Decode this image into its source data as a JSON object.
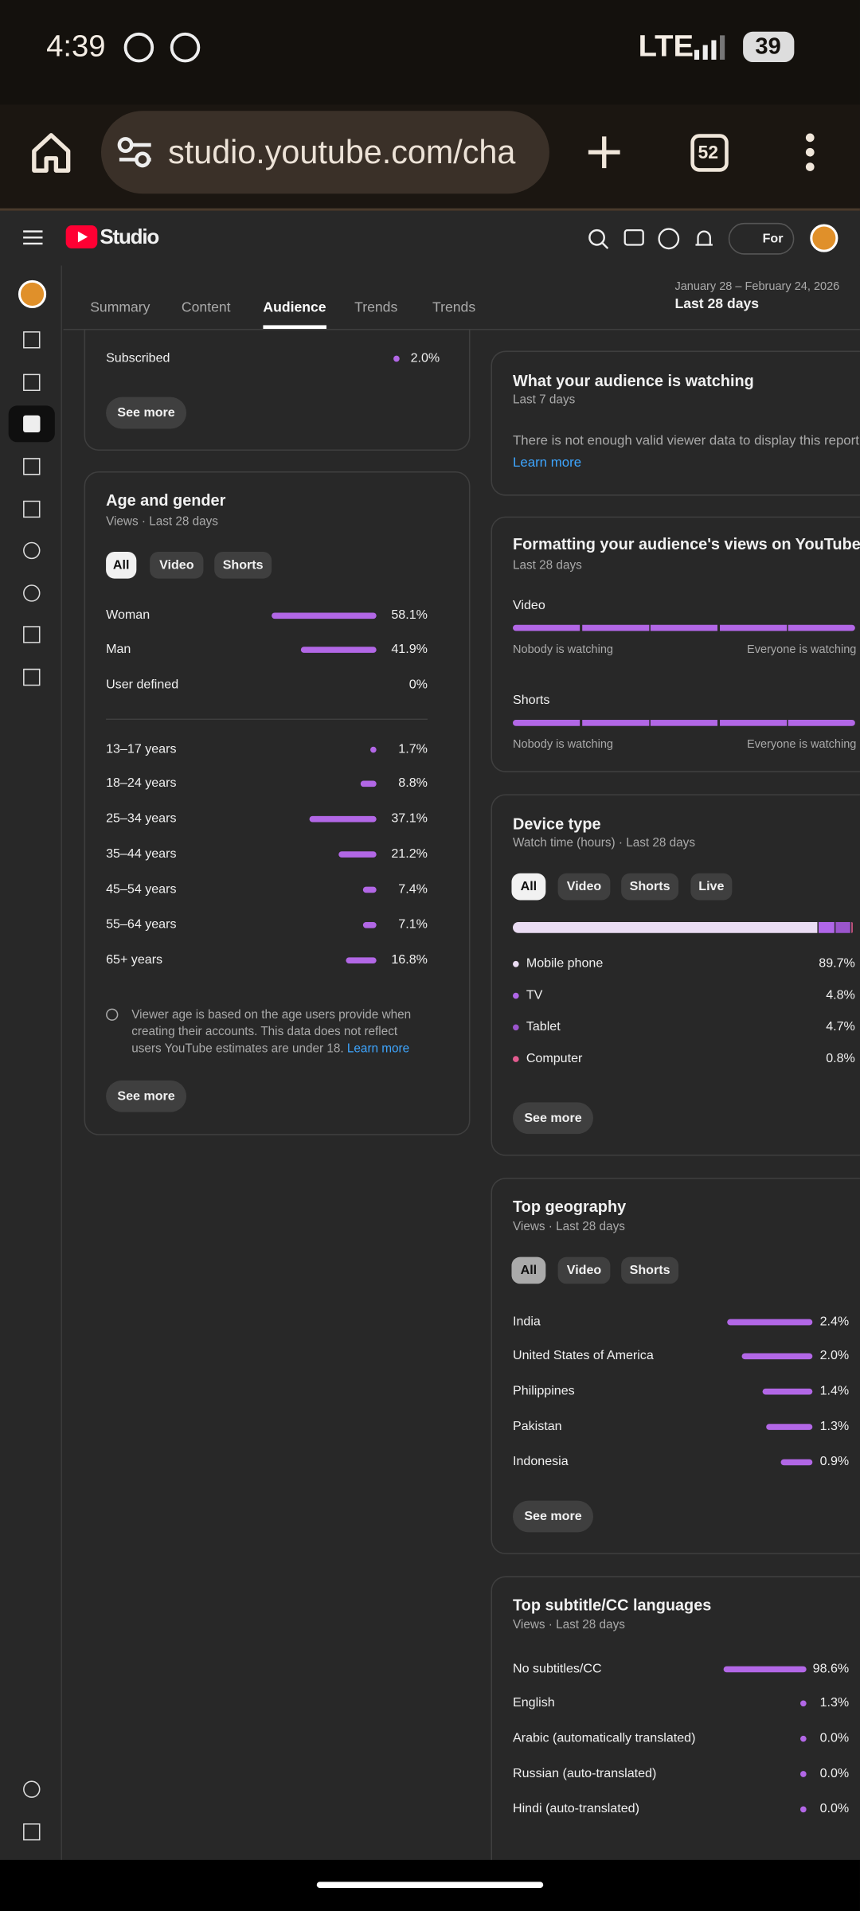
{
  "status_bar": {
    "time": "4:39",
    "network": "LTE",
    "battery": "39"
  },
  "browser": {
    "url": "studio.youtube.com/cha",
    "tab_count": "52"
  },
  "header": {
    "logo": "Studio",
    "create_button": "For"
  },
  "tabs": [
    {
      "label": "Summary"
    },
    {
      "label": "Content"
    },
    {
      "label": "Audience",
      "selected": true
    },
    {
      "label": "Trends"
    },
    {
      "label": "Trends"
    }
  ],
  "date_range": {
    "range": "January 28 – February 24, 2026",
    "label": "Last 28 days"
  },
  "subscribers_card": {
    "rows": [
      {
        "label": "Subscribed",
        "value": 2.0,
        "value_label": "2.0%"
      }
    ],
    "button": "See more"
  },
  "age_gender": {
    "title": "Age and gender",
    "subtitle": "Views · Last 28 days",
    "filters": [
      {
        "label": "All",
        "selected": true
      },
      {
        "label": "Video"
      },
      {
        "label": "Shorts"
      }
    ],
    "gender": [
      {
        "label": "Woman",
        "value": 58.1,
        "value_label": "58.1%"
      },
      {
        "label": "Man",
        "value": 41.9,
        "value_label": "41.9%"
      },
      {
        "label": "User defined",
        "value": 0,
        "value_label": "0%"
      }
    ],
    "age": [
      {
        "label": "13–17 years",
        "value": 1.7,
        "value_label": "1.7%"
      },
      {
        "label": "18–24 years",
        "value": 8.8,
        "value_label": "8.8%"
      },
      {
        "label": "25–34 years",
        "value": 37.1,
        "value_label": "37.1%"
      },
      {
        "label": "35–44 years",
        "value": 21.2,
        "value_label": "21.2%"
      },
      {
        "label": "45–54 years",
        "value": 7.4,
        "value_label": "7.4%"
      },
      {
        "label": "55–64 years",
        "value": 7.1,
        "value_label": "7.1%"
      },
      {
        "label": "65+ years",
        "value": 16.8,
        "value_label": "16.8%"
      }
    ],
    "note": "Viewer age is based on the age users provide when creating their accounts. This data does not reflect users YouTube estimates are under 18.",
    "note_link": "Learn more",
    "button": "See more"
  },
  "watching": {
    "title": "What your audience is watching",
    "subtitle": "Last 7 days",
    "text": "There is not enough valid viewer data to display this report.",
    "link": "Learn more"
  },
  "formatting": {
    "title": "Formatting your audience's views on YouTube",
    "subtitle": "Last 28 days",
    "sections": [
      {
        "label": "Video",
        "left": "Nobody is watching",
        "right": "Everyone is watching"
      },
      {
        "label": "Shorts",
        "left": "Nobody is watching",
        "right": "Everyone is watching"
      }
    ]
  },
  "device": {
    "title": "Device type",
    "subtitle": "Watch time (hours) · Last 28 days",
    "filters": [
      {
        "label": "All",
        "selected": true
      },
      {
        "label": "Video"
      },
      {
        "label": "Shorts"
      },
      {
        "label": "Live"
      }
    ],
    "rows": [
      {
        "label": "Mobile phone",
        "value": 89.7,
        "value_label": "89.7%",
        "color": "#eadcf3"
      },
      {
        "label": "TV",
        "value": 4.8,
        "value_label": "4.8%",
        "color": "#b066e8"
      },
      {
        "label": "Tablet",
        "value": 4.7,
        "value_label": "4.7%",
        "color": "#9a55cc"
      },
      {
        "label": "Computer",
        "value": 0.8,
        "value_label": "0.8%",
        "color": "#e35b8f"
      }
    ],
    "button": "See more"
  },
  "geography": {
    "title": "Top geography",
    "subtitle": "Views · Last 28 days",
    "filters": [
      {
        "label": "All",
        "selected": true
      },
      {
        "label": "Video"
      },
      {
        "label": "Shorts"
      }
    ],
    "rows": [
      {
        "label": "India",
        "value": 2.4,
        "value_label": "2.4%"
      },
      {
        "label": "United States of America",
        "value": 2.0,
        "value_label": "2.0%"
      },
      {
        "label": "Philippines",
        "value": 1.4,
        "value_label": "1.4%"
      },
      {
        "label": "Pakistan",
        "value": 1.3,
        "value_label": "1.3%"
      },
      {
        "label": "Indonesia",
        "value": 0.9,
        "value_label": "0.9%"
      }
    ],
    "button": "See more"
  },
  "subtitles": {
    "title": "Top subtitle/CC languages",
    "subtitle": "Views · Last 28 days",
    "rows": [
      {
        "label": "No subtitles/CC",
        "value": 98.6,
        "value_label": "98.6%"
      },
      {
        "label": "English",
        "value": 1.3,
        "value_label": "1.3%"
      },
      {
        "label": "Arabic (automatically translated)",
        "value": 0.0,
        "value_label": "0.0%"
      },
      {
        "label": "Russian (auto-translated)",
        "value": 0.0,
        "value_label": "0.0%"
      },
      {
        "label": "Hindi (auto-translated)",
        "value": 0.0,
        "value_label": "0.0%"
      }
    ]
  }
}
